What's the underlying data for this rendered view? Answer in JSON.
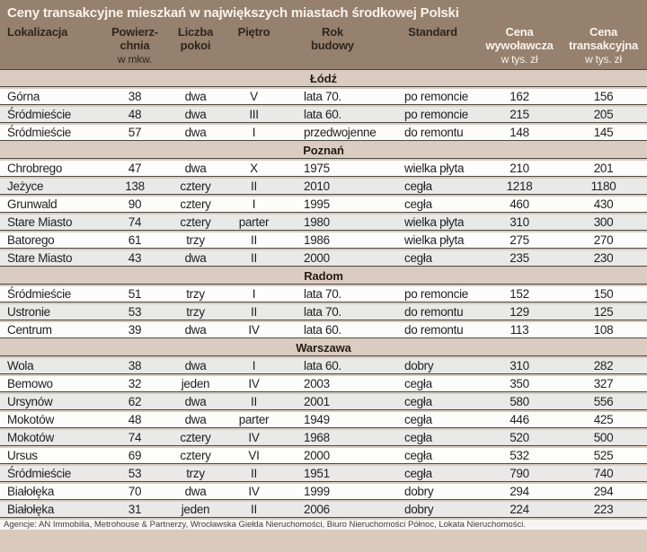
{
  "colors": {
    "page_bg": "#d9cabd",
    "header_bg": "#96806e",
    "title_text": "#f8f3ea",
    "header_text": "#30261d",
    "band_bg": "#dbccc1",
    "row_bg": "#fcfcfa",
    "row_alt": "#e9e9e8",
    "rule": "#4c4a45",
    "footer_bg": "#f7f5f2"
  },
  "chart_data": {
    "type": "table",
    "title": "Ceny transakcyjne mieszkań w największych miastach środkowej Polski",
    "columns": [
      {
        "id": "lokalizacja",
        "label": "Lokalizacja",
        "sub": "",
        "accent": false
      },
      {
        "id": "powierzchnia",
        "label": "Powierz-\nchnia",
        "sub": "w mkw.",
        "accent": false
      },
      {
        "id": "liczba-pokoi",
        "label": "Liczba\npokoi",
        "sub": "",
        "accent": false
      },
      {
        "id": "pietro",
        "label": "Piętro",
        "sub": "",
        "accent": false
      },
      {
        "id": "rok-budowy",
        "label": "Rok\nbudowy",
        "sub": "",
        "accent": false
      },
      {
        "id": "standard",
        "label": "Standard",
        "sub": "",
        "accent": false
      },
      {
        "id": "cena-wywolawcza",
        "label": "Cena\nwywoławcza",
        "sub": "w tys. zł",
        "accent": true
      },
      {
        "id": "cena-transakcyjna",
        "label": "Cena\ntransakcyjna",
        "sub": "w tys. zł",
        "accent": true
      }
    ],
    "sections": [
      {
        "name": "Łódź",
        "rows": [
          {
            "shaded": false,
            "cells": [
              "Górna",
              "38",
              "dwa",
              "V",
              "lata 70.",
              "po remoncie",
              "162",
              "156"
            ]
          },
          {
            "shaded": true,
            "cells": [
              "Śródmieście",
              "48",
              "dwa",
              "III",
              "lata 60.",
              "po remoncie",
              "215",
              "205"
            ]
          },
          {
            "shaded": false,
            "cells": [
              "Śródmieście",
              "57",
              "dwa",
              "I",
              "przedwojenne",
              "do remontu",
              "148",
              "145"
            ]
          }
        ]
      },
      {
        "name": "Poznań",
        "rows": [
          {
            "shaded": false,
            "cells": [
              "Chrobrego",
              "47",
              "dwa",
              "X",
              "1975",
              "wielka płyta",
              "210",
              "201"
            ]
          },
          {
            "shaded": true,
            "cells": [
              "Jeżyce",
              "138",
              "cztery",
              "II",
              "2010",
              "cegła",
              "1218",
              "1180"
            ]
          },
          {
            "shaded": false,
            "cells": [
              "Grunwald",
              "90",
              "cztery",
              "I",
              "1995",
              "cegła",
              "460",
              "430"
            ]
          },
          {
            "shaded": true,
            "cells": [
              "Stare Miasto",
              "74",
              "cztery",
              "parter",
              "1980",
              "wielka płyta",
              "310",
              "300"
            ]
          },
          {
            "shaded": false,
            "cells": [
              "Batorego",
              "61",
              "trzy",
              "II",
              "1986",
              "wielka płyta",
              "275",
              "270"
            ]
          },
          {
            "shaded": true,
            "cells": [
              "Stare Miasto",
              "43",
              "dwa",
              "II",
              "2000",
              "cegła",
              "235",
              "230"
            ]
          }
        ]
      },
      {
        "name": "Radom",
        "rows": [
          {
            "shaded": false,
            "cells": [
              "Śródmieście",
              "51",
              "trzy",
              "I",
              "lata 70.",
              "po remoncie",
              "152",
              "150"
            ]
          },
          {
            "shaded": true,
            "cells": [
              "Ustronie",
              "53",
              "trzy",
              "II",
              "lata 70.",
              "do remontu",
              "129",
              "125"
            ]
          },
          {
            "shaded": false,
            "cells": [
              "Centrum",
              "39",
              "dwa",
              "IV",
              "lata 60.",
              "do remontu",
              "113",
              "108"
            ]
          }
        ]
      },
      {
        "name": "Warszawa",
        "rows": [
          {
            "shaded": true,
            "cells": [
              "Wola",
              "38",
              "dwa",
              "I",
              "lata 60.",
              "dobry",
              "310",
              "282"
            ]
          },
          {
            "shaded": false,
            "cells": [
              "Bemowo",
              "32",
              "jeden",
              "IV",
              "2003",
              "cegła",
              "350",
              "327"
            ]
          },
          {
            "shaded": true,
            "cells": [
              "Ursynów",
              "62",
              "dwa",
              "II",
              "2001",
              "cegła",
              "580",
              "556"
            ]
          },
          {
            "shaded": false,
            "cells": [
              "Mokotów",
              "48",
              "dwa",
              "parter",
              "1949",
              "cegła",
              "446",
              "425"
            ]
          },
          {
            "shaded": true,
            "cells": [
              "Mokotów",
              "74",
              "cztery",
              "IV",
              "1968",
              "cegła",
              "520",
              "500"
            ]
          },
          {
            "shaded": false,
            "cells": [
              "Ursus",
              "69",
              "cztery",
              "VI",
              "2000",
              "cegła",
              "532",
              "525"
            ]
          },
          {
            "shaded": true,
            "cells": [
              "Śródmieście",
              "53",
              "trzy",
              "II",
              "1951",
              "cegła",
              "790",
              "740"
            ]
          },
          {
            "shaded": false,
            "cells": [
              "Białołęka",
              "70",
              "dwa",
              "IV",
              "1999",
              "dobry",
              "294",
              "294"
            ]
          },
          {
            "shaded": true,
            "cells": [
              "Białołęka",
              "31",
              "jeden",
              "II",
              "2006",
              "dobry",
              "224",
              "223"
            ]
          }
        ]
      }
    ],
    "footer": "Agencje: AN Immobilia, Metrohouse & Partnerzy, Wrocławska Giełda Nieruchomości, Biuro Nieruchomości Północ, Lokata Nieruchomości."
  }
}
